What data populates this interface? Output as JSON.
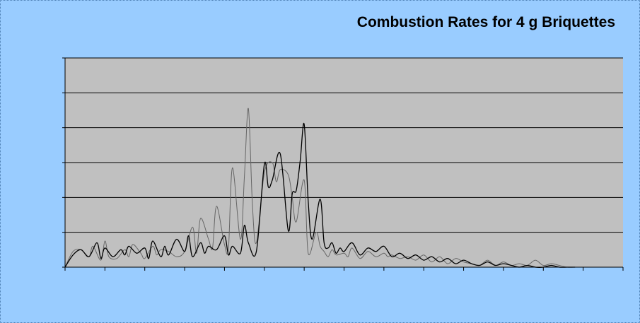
{
  "chart_data": {
    "type": "line",
    "title": "Combustion Rates for 4 g Briquettes",
    "xlabel": "",
    "ylabel": "",
    "xlim": [
      0,
      140
    ],
    "ylim": [
      0,
      6
    ],
    "x_major_tick_step": 10,
    "y_gridline_step": 1,
    "grid": true,
    "legend": "none",
    "tick_labels_visible": false,
    "series": [
      {
        "color": "#666666",
        "x": [
          0,
          2,
          4,
          6,
          7,
          9,
          10,
          11,
          13,
          15,
          16,
          17,
          19,
          20,
          22,
          23,
          24,
          26,
          28,
          30,
          32,
          33,
          34,
          36,
          37,
          38,
          40,
          41,
          42,
          44,
          45,
          46,
          47,
          48,
          50,
          52,
          53,
          54,
          56,
          57,
          58,
          60,
          61,
          63,
          64,
          65,
          66,
          67,
          68,
          70,
          71,
          72,
          74,
          76,
          78,
          80,
          81,
          82,
          84,
          86,
          88,
          90,
          92,
          94,
          96,
          98,
          100,
          102,
          104,
          106,
          108,
          110,
          112,
          114,
          116,
          118,
          120,
          122,
          124,
          126,
          128
        ],
        "y": [
          0.0,
          0.45,
          0.5,
          0.3,
          0.6,
          0.2,
          0.75,
          0.3,
          0.25,
          0.5,
          0.3,
          0.65,
          0.4,
          0.25,
          0.6,
          0.35,
          0.5,
          0.45,
          0.3,
          0.45,
          1.15,
          0.4,
          1.4,
          0.8,
          0.55,
          1.75,
          0.65,
          0.55,
          2.85,
          0.8,
          2.6,
          4.55,
          1.8,
          0.7,
          2.7,
          3.0,
          2.45,
          2.8,
          2.65,
          2.0,
          1.3,
          2.5,
          0.4,
          1.0,
          0.6,
          0.45,
          0.3,
          0.5,
          0.35,
          0.4,
          0.3,
          0.55,
          0.25,
          0.45,
          0.3,
          0.4,
          0.3,
          0.35,
          0.25,
          0.3,
          0.2,
          0.35,
          0.15,
          0.3,
          0.1,
          0.25,
          0.15,
          0.1,
          0.05,
          0.2,
          0.05,
          0.15,
          0.05,
          0.1,
          0.05,
          0.2,
          0.05,
          0.1,
          0.05,
          0.0,
          0.0
        ]
      },
      {
        "color": "#000000",
        "x": [
          0,
          2,
          4,
          6,
          8,
          9,
          10,
          12,
          14,
          15,
          16,
          18,
          20,
          21,
          22,
          24,
          25,
          26,
          28,
          30,
          31,
          32,
          34,
          35,
          36,
          38,
          40,
          41,
          42,
          44,
          45,
          46,
          48,
          50,
          51,
          52,
          54,
          56,
          57,
          58,
          59,
          60,
          61,
          62,
          64,
          65,
          66,
          67,
          68,
          69,
          70,
          72,
          74,
          76,
          78,
          80,
          82,
          84,
          86,
          88,
          90,
          92,
          94,
          96,
          98,
          100,
          102,
          104,
          106,
          108,
          110,
          112,
          114,
          116,
          118,
          120,
          122,
          124,
          126,
          128
        ],
        "y": [
          0.0,
          0.35,
          0.5,
          0.3,
          0.7,
          0.25,
          0.55,
          0.3,
          0.5,
          0.35,
          0.6,
          0.4,
          0.55,
          0.25,
          0.75,
          0.3,
          0.6,
          0.35,
          0.8,
          0.45,
          0.9,
          0.3,
          0.7,
          0.4,
          0.6,
          0.5,
          0.9,
          0.35,
          0.6,
          0.4,
          1.2,
          0.7,
          0.45,
          2.95,
          2.3,
          2.5,
          3.25,
          1.05,
          2.1,
          2.2,
          3.05,
          4.1,
          1.9,
          0.8,
          1.95,
          0.7,
          0.55,
          0.7,
          0.4,
          0.55,
          0.45,
          0.7,
          0.35,
          0.55,
          0.45,
          0.6,
          0.3,
          0.4,
          0.25,
          0.35,
          0.2,
          0.3,
          0.15,
          0.25,
          0.1,
          0.2,
          0.1,
          0.05,
          0.15,
          0.05,
          0.1,
          0.05,
          0.0,
          0.05,
          0.0,
          0.0,
          0.05,
          0.0,
          0.0,
          0.0
        ]
      }
    ]
  }
}
